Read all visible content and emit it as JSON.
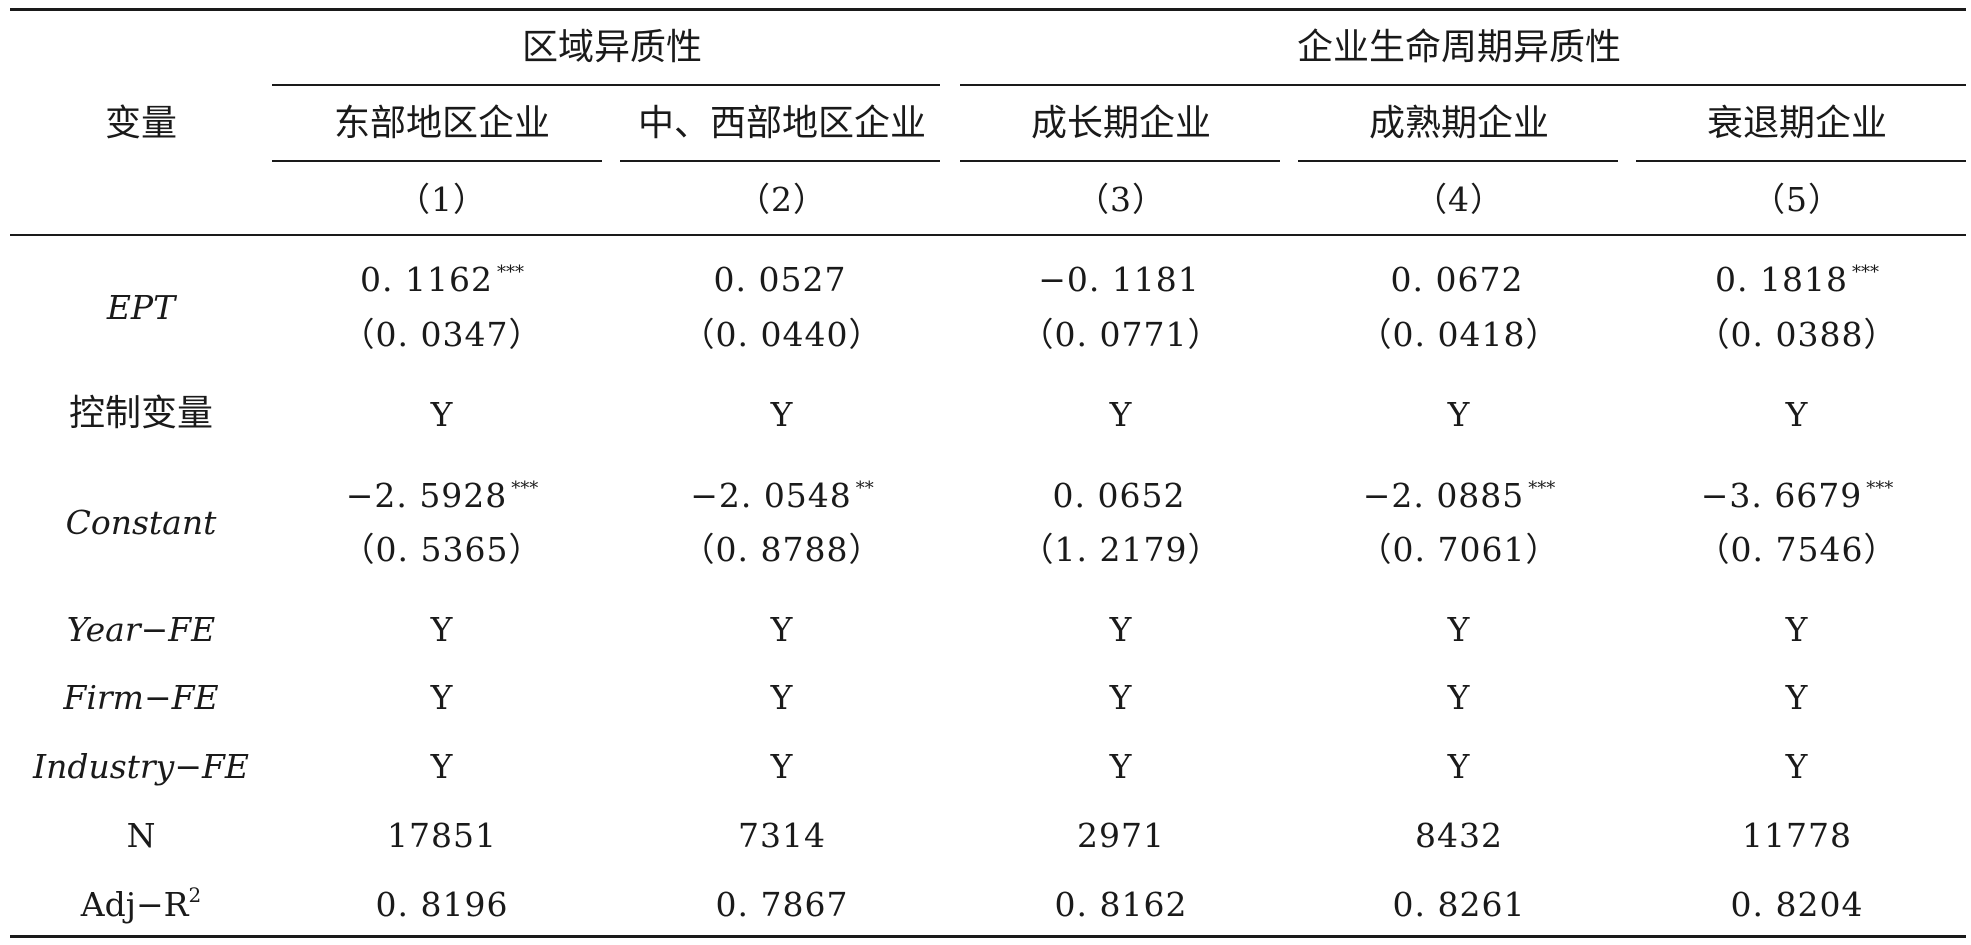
{
  "header": {
    "variable_label": "变量",
    "group_region": "区域异质性",
    "group_lifecycle": "企业生命周期异质性",
    "columns": [
      "东部地区企业",
      "中、西部地区企业",
      "成长期企业",
      "成熟期企业",
      "衰退期企业"
    ],
    "column_numbers": [
      "（1）",
      "（2）",
      "（3）",
      "（4）",
      "（5）"
    ]
  },
  "rows": {
    "ept": {
      "label": "EPT",
      "coef": [
        "0. 1162",
        "0. 0527",
        "−0. 1181",
        "0. 0672",
        "0. 1818"
      ],
      "stars": [
        "***",
        "",
        "",
        "",
        "***"
      ],
      "se": [
        "（0. 0347）",
        "（0. 0440）",
        "（0. 0771）",
        "（0. 0418）",
        "（0. 0388）"
      ]
    },
    "controls": {
      "label": "控制变量",
      "values": [
        "Y",
        "Y",
        "Y",
        "Y",
        "Y"
      ]
    },
    "constant": {
      "label": "Constant",
      "coef": [
        "−2. 5928",
        "−2. 0548",
        "0. 0652",
        "−2. 0885",
        "−3. 6679"
      ],
      "stars": [
        "***",
        "**",
        "",
        "***",
        "***"
      ],
      "se": [
        "（0. 5365）",
        "（0. 8788）",
        "（1. 2179）",
        "（0. 7061）",
        "（0. 7546）"
      ]
    },
    "year_fe": {
      "label": "Year−FE",
      "values": [
        "Y",
        "Y",
        "Y",
        "Y",
        "Y"
      ]
    },
    "firm_fe": {
      "label": "Firm−FE",
      "values": [
        "Y",
        "Y",
        "Y",
        "Y",
        "Y"
      ]
    },
    "industry_fe": {
      "label": "Industry−FE",
      "values": [
        "Y",
        "Y",
        "Y",
        "Y",
        "Y"
      ]
    },
    "n": {
      "label": "N",
      "values": [
        "17851",
        "7314",
        "2971",
        "8432",
        "11778"
      ]
    },
    "adj_r2": {
      "label": "Adj−R",
      "label_exp": "2",
      "values": [
        "0. 8196",
        "0. 7867",
        "0. 8162",
        "0. 8261",
        "0. 8204"
      ]
    }
  }
}
